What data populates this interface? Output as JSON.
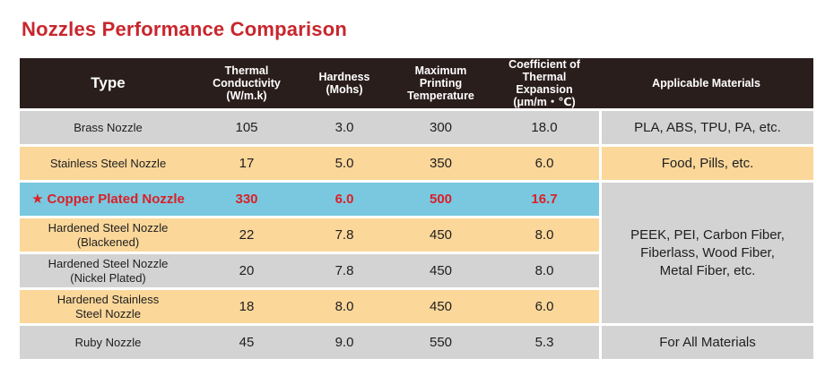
{
  "title": "Nozzles Performance Comparison",
  "headers": {
    "type": "Type",
    "thermal_conductivity_l1": "Thermal Conductivity",
    "thermal_conductivity_l2": "(W/m.k)",
    "hardness_l1": "Hardness",
    "hardness_l2": "(Mohs)",
    "max_temp_l1": "Maximum",
    "max_temp_l2": "Printing",
    "max_temp_l3": "Temperature",
    "cte_l1": "Coefficient of",
    "cte_l2": "Thermal Expansion",
    "cte_l3": "(μm/m・℃)",
    "applicable": "Applicable Materials"
  },
  "rows": [
    {
      "name": "Brass Nozzle",
      "tc": "105",
      "hardness": "3.0",
      "temp": "300",
      "cte": "18.0",
      "applicable": "PLA, ABS, TPU, PA, etc."
    },
    {
      "name": "Stainless Steel Nozzle",
      "tc": "17",
      "hardness": "5.0",
      "temp": "350",
      "cte": "6.0",
      "applicable": "Food, Pills, etc."
    },
    {
      "star": "★",
      "name": "Copper Plated Nozzle",
      "tc": "330",
      "hardness": "6.0",
      "temp": "500",
      "cte": "16.7"
    },
    {
      "name_l1": "Hardened Steel Nozzle",
      "name_l2": "(Blackened)",
      "tc": "22",
      "hardness": "7.8",
      "temp": "450",
      "cte": "8.0"
    },
    {
      "name_l1": "Hardened Steel Nozzle",
      "name_l2": "(Nickel Plated)",
      "tc": "20",
      "hardness": "7.8",
      "temp": "450",
      "cte": "8.0"
    },
    {
      "name_l1": "Hardened Stainless",
      "name_l2": "Steel Nozzle",
      "tc": "18",
      "hardness": "8.0",
      "temp": "450",
      "cte": "6.0"
    },
    {
      "name": "Ruby Nozzle",
      "tc": "45",
      "hardness": "9.0",
      "temp": "550",
      "cte": "5.3",
      "applicable": "For All Materials"
    }
  ],
  "merged_applicable": {
    "line1": "PEEK, PEI, Carbon Fiber,",
    "line2": "Fiberlass, Wood Fiber,",
    "line3": "Metal Fiber, etc."
  },
  "colors": {
    "title": "#c8262d",
    "header_bg": "#2a1e1c",
    "gray_row": "#d3d3d4",
    "tan_row": "#fbd79a",
    "highlight_row": "#79c8e0",
    "highlight_text": "#dc1f26"
  }
}
